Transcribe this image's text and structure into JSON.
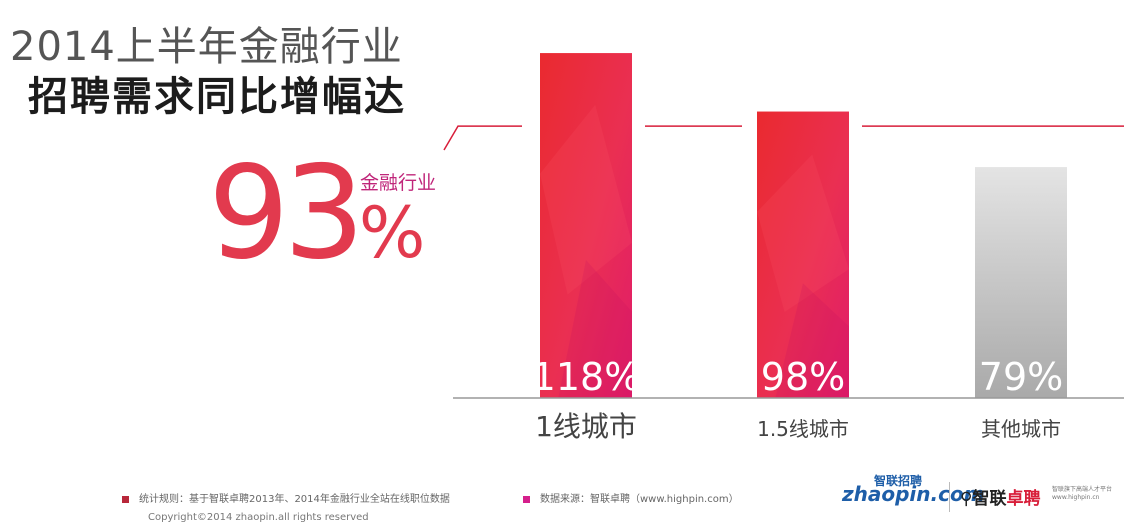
{
  "header": {
    "title_line1": "2014上半年金融行业",
    "title_line2": "招聘需求同比增幅达"
  },
  "highlight": {
    "label": "金融行业",
    "value": "93",
    "unit": "%"
  },
  "chart_data": {
    "type": "bar",
    "categories": [
      "1线城市",
      "1.5线城市",
      "其他城市"
    ],
    "values": [
      118,
      98,
      79
    ],
    "value_labels": [
      "118%",
      "98%",
      "79%"
    ],
    "reference_value": 93,
    "unit": "%",
    "title": "",
    "xlabel": "",
    "ylabel": "",
    "ylim": [
      0,
      130
    ],
    "grid": false,
    "legend": "none",
    "colors": [
      "#e8204a",
      "#e8204a",
      "#c9c9c9"
    ]
  },
  "footer": {
    "note1": "统计规则：基于智联卓聘2013年、2014年金融行业全站在线职位数据",
    "note2": "数据来源：智联卓聘（www.highpin.com）",
    "copyright": "Copyright©2014 zhaopin.all rights reserved",
    "note1_color": "#b8273a",
    "note2_color": "#d51f8c"
  },
  "logos": {
    "zhaopin_text": "zhaopin.com",
    "zhaopin_cn": "智联招聘",
    "zhuopin_main": "智联",
    "zhuopin_accent": "卓聘",
    "zhuopin_line1": "智联旗下高端人才平台",
    "zhuopin_line2": "www.highpin.cn"
  }
}
